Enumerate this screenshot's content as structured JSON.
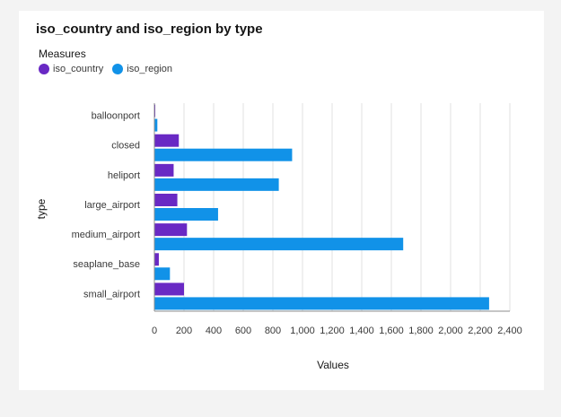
{
  "colors": {
    "iso_country": "#6929c4",
    "iso_region": "#1192e8",
    "grid": "#e0e0e0",
    "axis": "#8d8d8d",
    "text": "#393939"
  },
  "legend": {
    "title": "Measures",
    "items": [
      {
        "label": "iso_country",
        "color": "#6929c4"
      },
      {
        "label": "iso_region",
        "color": "#1192e8"
      }
    ]
  },
  "chart_data": {
    "type": "bar",
    "orientation": "horizontal",
    "title": "iso_country and iso_region by type",
    "xlabel": "Values",
    "ylabel": "type",
    "categories": [
      "balloonport",
      "closed",
      "heliport",
      "large_airport",
      "medium_airport",
      "seaplane_base",
      "small_airport"
    ],
    "series": [
      {
        "name": "iso_country",
        "values": [
          2,
          165,
          130,
          155,
          220,
          30,
          200
        ]
      },
      {
        "name": "iso_region",
        "values": [
          20,
          930,
          840,
          430,
          1680,
          105,
          2260
        ]
      }
    ],
    "xlim": [
      0,
      2400
    ],
    "xticks": [
      0,
      200,
      400,
      600,
      800,
      1000,
      1200,
      1400,
      1600,
      1800,
      2000,
      2200,
      2400
    ],
    "xtick_labels": [
      "0",
      "200",
      "400",
      "600",
      "800",
      "1,000",
      "1,200",
      "1,400",
      "1,600",
      "1,800",
      "2,000",
      "2,200",
      "2,400"
    ],
    "grid": true,
    "legend_position": "top-left"
  }
}
